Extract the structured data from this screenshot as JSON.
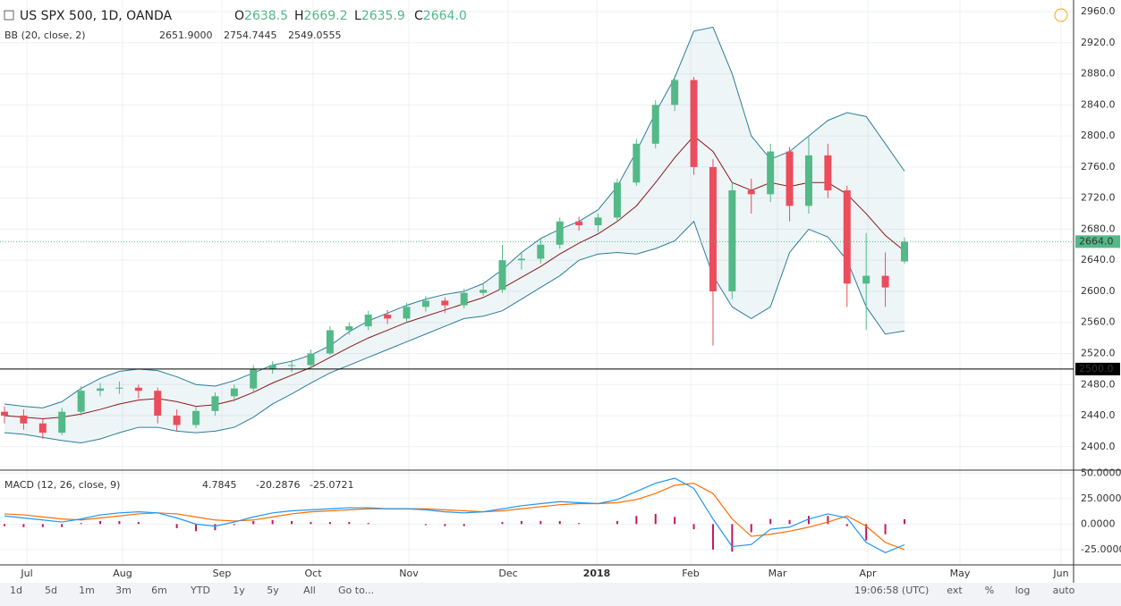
{
  "header": {
    "symbol": "US SPX 500, 1D, OANDA",
    "ohlc": [
      {
        "key": "O",
        "value": 2638.5
      },
      {
        "key": "H",
        "value": 2669.2
      },
      {
        "key": "L",
        "value": 2635.9
      },
      {
        "key": "C",
        "value": 2664,
        "label": "2664.0"
      }
    ]
  },
  "bb_legend": {
    "name": "BB (20, close, 2)",
    "values": [
      {
        "value": 2651.9,
        "label": "2651.9000"
      },
      2754.7445,
      2549.0555
    ]
  },
  "macd_legend": {
    "name": "MACD (12, 26, close, 9)",
    "values": [
      4.7845,
      -20.2876,
      -25.0721
    ]
  },
  "toolbar": {
    "ranges": [
      "1d",
      "5d",
      "1m",
      "3m",
      "6m",
      "YTD",
      "1y",
      "5y",
      "All"
    ],
    "goto": "Go to...",
    "time": "19:06:58 (UTC)",
    "options": [
      "ext",
      "%",
      "log",
      "auto"
    ]
  },
  "chart_data": [
    {
      "type": "candlestick",
      "x_labels": [
        "Jul",
        "Aug",
        "Sep",
        "Oct",
        "Nov",
        "Dec",
        "2018",
        "Feb",
        "Mar",
        "Apr",
        "May",
        "Jun"
      ],
      "up_color": "#53b987",
      "down_color": "#eb4d5c",
      "band_color": "#2a7e9a",
      "mid_color": "#8b1a1a",
      "grid": true,
      "ylim": [
        2371,
        2975
      ],
      "yticks": [
        {
          "value": 2400,
          "label": "2400.0"
        },
        {
          "value": 2440,
          "label": "2440.0"
        },
        {
          "value": 2480,
          "label": "2480.0"
        },
        {
          "value": 2520,
          "label": "2520.0"
        },
        {
          "value": 2560,
          "label": "2560.0"
        },
        {
          "value": 2600,
          "label": "2600.0"
        },
        {
          "value": 2640,
          "label": "2640.0"
        },
        {
          "value": 2680,
          "label": "2680.0"
        },
        {
          "value": 2720,
          "label": "2720.0"
        },
        {
          "value": 2760,
          "label": "2760.0"
        },
        {
          "value": 2800,
          "label": "2800.0"
        },
        {
          "value": 2840,
          "label": "2840.0"
        },
        {
          "value": 2880,
          "label": "2880.0"
        },
        {
          "value": 2920,
          "label": "2920.0"
        },
        {
          "value": 2960,
          "label": "2960.0"
        }
      ],
      "last_price": {
        "value": 2664,
        "label": "2664.0"
      },
      "hline": {
        "value": 2500,
        "label": "2500.0"
      },
      "candles": [
        [
          2445,
          2452,
          2430,
          2440
        ],
        [
          2440,
          2448,
          2422,
          2430
        ],
        [
          2430,
          2436,
          2410,
          2418
        ],
        [
          2418,
          2450,
          2415,
          2445
        ],
        [
          2445,
          2478,
          2440,
          2472
        ],
        [
          2472,
          2482,
          2465,
          2475
        ],
        [
          2475,
          2484,
          2468,
          2476
        ],
        [
          2476,
          2480,
          2462,
          2472
        ],
        [
          2472,
          2476,
          2430,
          2440
        ],
        [
          2440,
          2448,
          2420,
          2428
        ],
        [
          2428,
          2452,
          2424,
          2446
        ],
        [
          2446,
          2470,
          2440,
          2465
        ],
        [
          2465,
          2480,
          2458,
          2475
        ],
        [
          2475,
          2505,
          2470,
          2500
        ],
        [
          2500,
          2510,
          2494,
          2505
        ],
        [
          2505,
          2512,
          2496,
          2505
        ],
        [
          2505,
          2525,
          2500,
          2520
        ],
        [
          2520,
          2555,
          2518,
          2550
        ],
        [
          2550,
          2560,
          2544,
          2555
        ],
        [
          2555,
          2575,
          2550,
          2570
        ],
        [
          2570,
          2576,
          2558,
          2565
        ],
        [
          2565,
          2585,
          2560,
          2580
        ],
        [
          2580,
          2594,
          2574,
          2588
        ],
        [
          2588,
          2592,
          2572,
          2582
        ],
        [
          2582,
          2603,
          2578,
          2598
        ],
        [
          2598,
          2610,
          2594,
          2602
        ],
        [
          2602,
          2660,
          2598,
          2640
        ],
        [
          2640,
          2650,
          2628,
          2642
        ],
        [
          2642,
          2668,
          2636,
          2660
        ],
        [
          2660,
          2695,
          2655,
          2690
        ],
        [
          2690,
          2696,
          2678,
          2685
        ],
        [
          2685,
          2700,
          2676,
          2695
        ],
        [
          2695,
          2745,
          2690,
          2740
        ],
        [
          2740,
          2796,
          2736,
          2790
        ],
        [
          2790,
          2846,
          2784,
          2840
        ],
        [
          2840,
          2878,
          2832,
          2872
        ],
        [
          2872,
          2876,
          2750,
          2760
        ],
        [
          2760,
          2770,
          2530,
          2600
        ],
        [
          2600,
          2740,
          2590,
          2730
        ],
        [
          2730,
          2745,
          2700,
          2725
        ],
        [
          2725,
          2790,
          2715,
          2780
        ],
        [
          2780,
          2786,
          2690,
          2710
        ],
        [
          2710,
          2800,
          2700,
          2775
        ],
        [
          2775,
          2790,
          2720,
          2730
        ],
        [
          2730,
          2736,
          2580,
          2610
        ],
        [
          2610,
          2675,
          2550,
          2620
        ],
        [
          2620,
          2650,
          2580,
          2605
        ],
        [
          2638.5,
          2669.2,
          2635.9,
          2664
        ]
      ],
      "bb_mid": [
        2440,
        2438,
        2436,
        2438,
        2442,
        2448,
        2455,
        2460,
        2462,
        2458,
        2452,
        2454,
        2460,
        2470,
        2482,
        2492,
        2502,
        2515,
        2528,
        2540,
        2550,
        2560,
        2568,
        2576,
        2584,
        2592,
        2604,
        2618,
        2632,
        2648,
        2662,
        2674,
        2690,
        2710,
        2740,
        2772,
        2800,
        2780,
        2740,
        2730,
        2740,
        2735,
        2740,
        2740,
        2725,
        2700,
        2672,
        2651.9
      ],
      "bb_upper": [
        2455,
        2452,
        2450,
        2458,
        2475,
        2488,
        2497,
        2500,
        2498,
        2490,
        2480,
        2478,
        2485,
        2495,
        2505,
        2510,
        2518,
        2530,
        2548,
        2562,
        2572,
        2582,
        2590,
        2596,
        2600,
        2610,
        2628,
        2650,
        2668,
        2680,
        2690,
        2705,
        2735,
        2780,
        2830,
        2875,
        2935,
        2940,
        2880,
        2800,
        2770,
        2780,
        2800,
        2820,
        2830,
        2825,
        2790,
        2754.7
      ],
      "bb_lower": [
        2418,
        2416,
        2412,
        2408,
        2405,
        2410,
        2418,
        2425,
        2425,
        2420,
        2418,
        2420,
        2425,
        2438,
        2455,
        2468,
        2482,
        2495,
        2505,
        2515,
        2525,
        2535,
        2545,
        2555,
        2565,
        2568,
        2575,
        2590,
        2605,
        2620,
        2640,
        2648,
        2650,
        2648,
        2655,
        2665,
        2690,
        2620,
        2580,
        2565,
        2580,
        2650,
        2680,
        2670,
        2640,
        2580,
        2545,
        2549.1
      ]
    },
    {
      "type": "macd",
      "macd_color": "#2196f3",
      "signal_color": "#ff6d00",
      "hist_color": "#c2185b",
      "ylim": [
        -40,
        52
      ],
      "yticks": [
        {
          "value": 50,
          "label": "50.0000"
        },
        {
          "value": 25,
          "label": "25.0000"
        },
        {
          "value": 0,
          "label": "0.0000"
        },
        {
          "value": -25,
          "label": "-25.0000"
        }
      ],
      "macd": [
        8,
        6,
        4,
        2,
        5,
        9,
        11,
        12,
        11,
        6,
        0,
        -2,
        2,
        7,
        11,
        13,
        14,
        15,
        16,
        16,
        15,
        15,
        14,
        12,
        11,
        12,
        15,
        18,
        20,
        22,
        21,
        20,
        24,
        32,
        40,
        45,
        35,
        5,
        -22,
        -20,
        -5,
        -3,
        5,
        10,
        6,
        -18,
        -28,
        -20.29
      ],
      "signal": [
        10,
        9,
        7,
        5,
        4,
        6,
        8,
        10,
        11,
        10,
        7,
        4,
        3,
        4,
        7,
        10,
        12,
        13,
        14,
        15,
        15,
        15,
        15,
        14,
        13,
        12,
        13,
        15,
        17,
        19,
        20,
        20,
        21,
        24,
        30,
        38,
        40,
        30,
        5,
        -12,
        -10,
        -7,
        -3,
        2,
        8,
        -2,
        -18,
        -25.07
      ],
      "histogram": [
        -2,
        -3,
        -3,
        -3,
        1,
        3,
        3,
        2,
        0,
        -4,
        -7,
        -6,
        -1,
        3,
        4,
        3,
        2,
        2,
        2,
        1,
        0,
        0,
        -1,
        -2,
        -2,
        0,
        2,
        3,
        3,
        3,
        1,
        0,
        3,
        8,
        10,
        7,
        -5,
        -25,
        -27,
        -8,
        5,
        4,
        8,
        8,
        -2,
        -16,
        -10,
        4.78
      ]
    }
  ]
}
